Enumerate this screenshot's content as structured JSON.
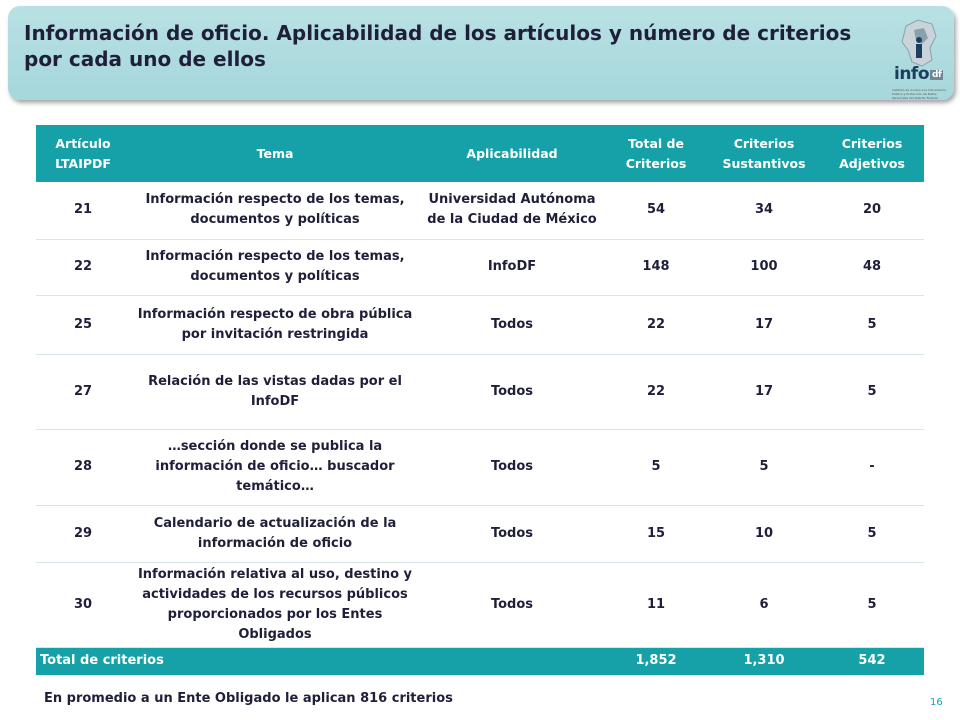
{
  "header": {
    "title": "Información de oficio. Aplicabilidad de los artículos y número de criterios por cada uno de ellos",
    "logo_text": "info",
    "logo_suffix": "df",
    "logo_caption": "Instituto de Acceso a la Información Pública y Protección de Datos Personales del Distrito Federal"
  },
  "table": {
    "headers": [
      "Artículo LTAIPDF",
      "Tema",
      "Aplicabilidad",
      "Total de Criterios",
      "Criterios Sustantivos",
      "Criterios Adjetivos"
    ],
    "rows": [
      [
        "21",
        "Información respecto de los temas, documentos y políticas",
        "Universidad Autónoma de la Ciudad de México",
        "54",
        "34",
        "20"
      ],
      [
        "22",
        "Información respecto de los temas, documentos y políticas",
        "InfoDF",
        "148",
        "100",
        "48"
      ],
      [
        "25",
        "Información respecto de obra pública por invitación restringida",
        "Todos",
        "22",
        "17",
        "5"
      ],
      [
        "27",
        "Relación de las vistas dadas por el InfoDF",
        "Todos",
        "22",
        "17",
        "5"
      ],
      [
        "28",
        "…sección donde se publica la información de oficio… buscador temático…",
        "Todos",
        "5",
        "5",
        "-"
      ],
      [
        "29",
        "Calendario de actualización de la información de oficio",
        "Todos",
        "15",
        "10",
        "5"
      ],
      [
        "30",
        "Información relativa al uso, destino y actividades de los recursos públicos proporcionados por los Entes Obligados",
        "Todos",
        "11",
        "6",
        "5"
      ]
    ],
    "total": {
      "label": "Total de criterios",
      "total": "1,852",
      "sustantivos": "1,310",
      "adjetivos": "542"
    }
  },
  "footnote": "En promedio a un Ente Obligado le aplican 816 criterios",
  "page_number": "16",
  "colors": {
    "header_bg": "#a5d7db",
    "table_header_bg": "#16a1a8",
    "text": "#1f1f3a",
    "logo_blue": "#1c3f5e"
  }
}
